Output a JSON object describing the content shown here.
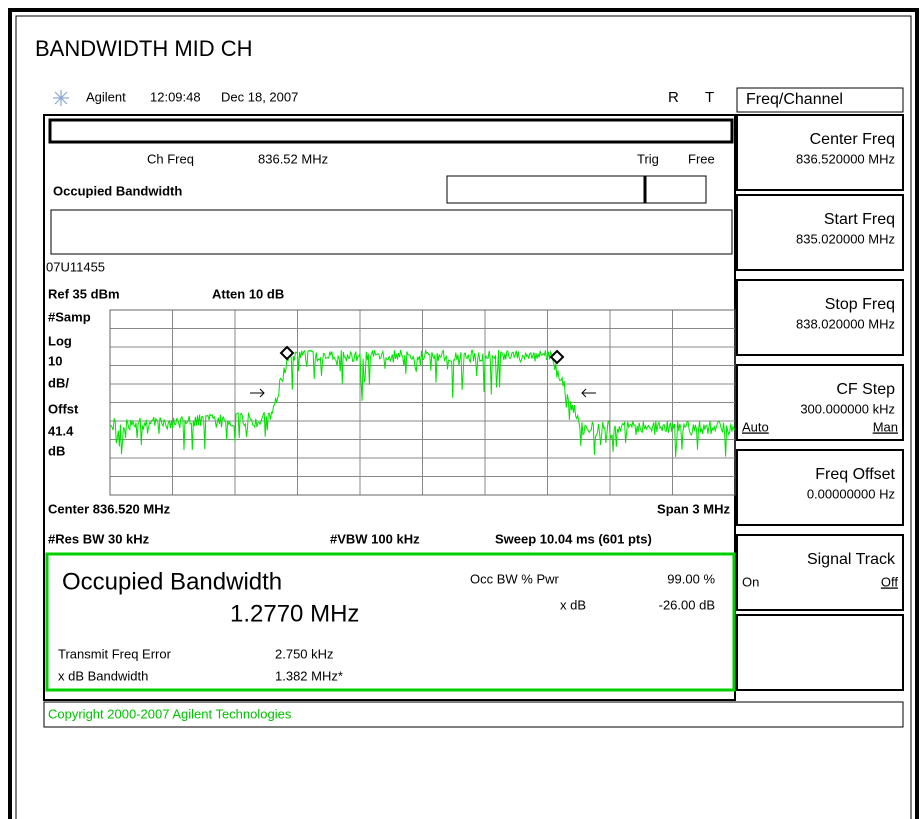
{
  "title": "BANDWIDTH MID CH",
  "header": {
    "brand": "Agilent",
    "time": "12:09:48",
    "date": "Dec 18, 2007",
    "flag_r": "R",
    "flag_t": "T"
  },
  "menu": {
    "title": "Freq/Channel",
    "softkeys": [
      {
        "label": "Center Freq",
        "value": "836.520000 MHz"
      },
      {
        "label": "Start Freq",
        "value": "835.020000 MHz"
      },
      {
        "label": "Stop Freq",
        "value": "838.020000 MHz"
      },
      {
        "label": "CF Step",
        "value": "300.000000 kHz",
        "left": "Auto",
        "right": "Man"
      },
      {
        "label": "Freq Offset",
        "value": "0.00000000  Hz"
      },
      {
        "label": "Signal Track",
        "left": "On",
        "right": "Off"
      }
    ]
  },
  "screen": {
    "ch_freq_label": "Ch Freq",
    "ch_freq": "836.52 MHz",
    "trig_label": "Trig",
    "trig": "Free",
    "measure": "Occupied Bandwidth",
    "file": "07U11455",
    "ref": "Ref 35 dBm",
    "atten": "Atten 10 dB",
    "side_labels": [
      "#Samp",
      "Log",
      "10",
      "dB/",
      "Offst",
      "41.4",
      "dB"
    ],
    "center": "Center 836.520 MHz",
    "span": "Span 3 MHz",
    "res_bw": "#Res BW 30 kHz",
    "vbw": "#VBW 100 kHz",
    "sweep": "Sweep 10.04 ms (601 pts)"
  },
  "results": {
    "title": "Occupied Bandwidth",
    "obw": "1.2770 MHz",
    "pwr_label": "Occ BW % Pwr",
    "pwr": "99.00 %",
    "xdb_label": "x dB",
    "xdb": "-26.00 dB",
    "tfe_label": "Transmit Freq Error",
    "tfe": "2.750 kHz",
    "xdbbw_label": "x dB Bandwidth",
    "xdbbw": "1.382 MHz*"
  },
  "copyright": "Copyright 2000-2007 Agilent Technologies"
}
